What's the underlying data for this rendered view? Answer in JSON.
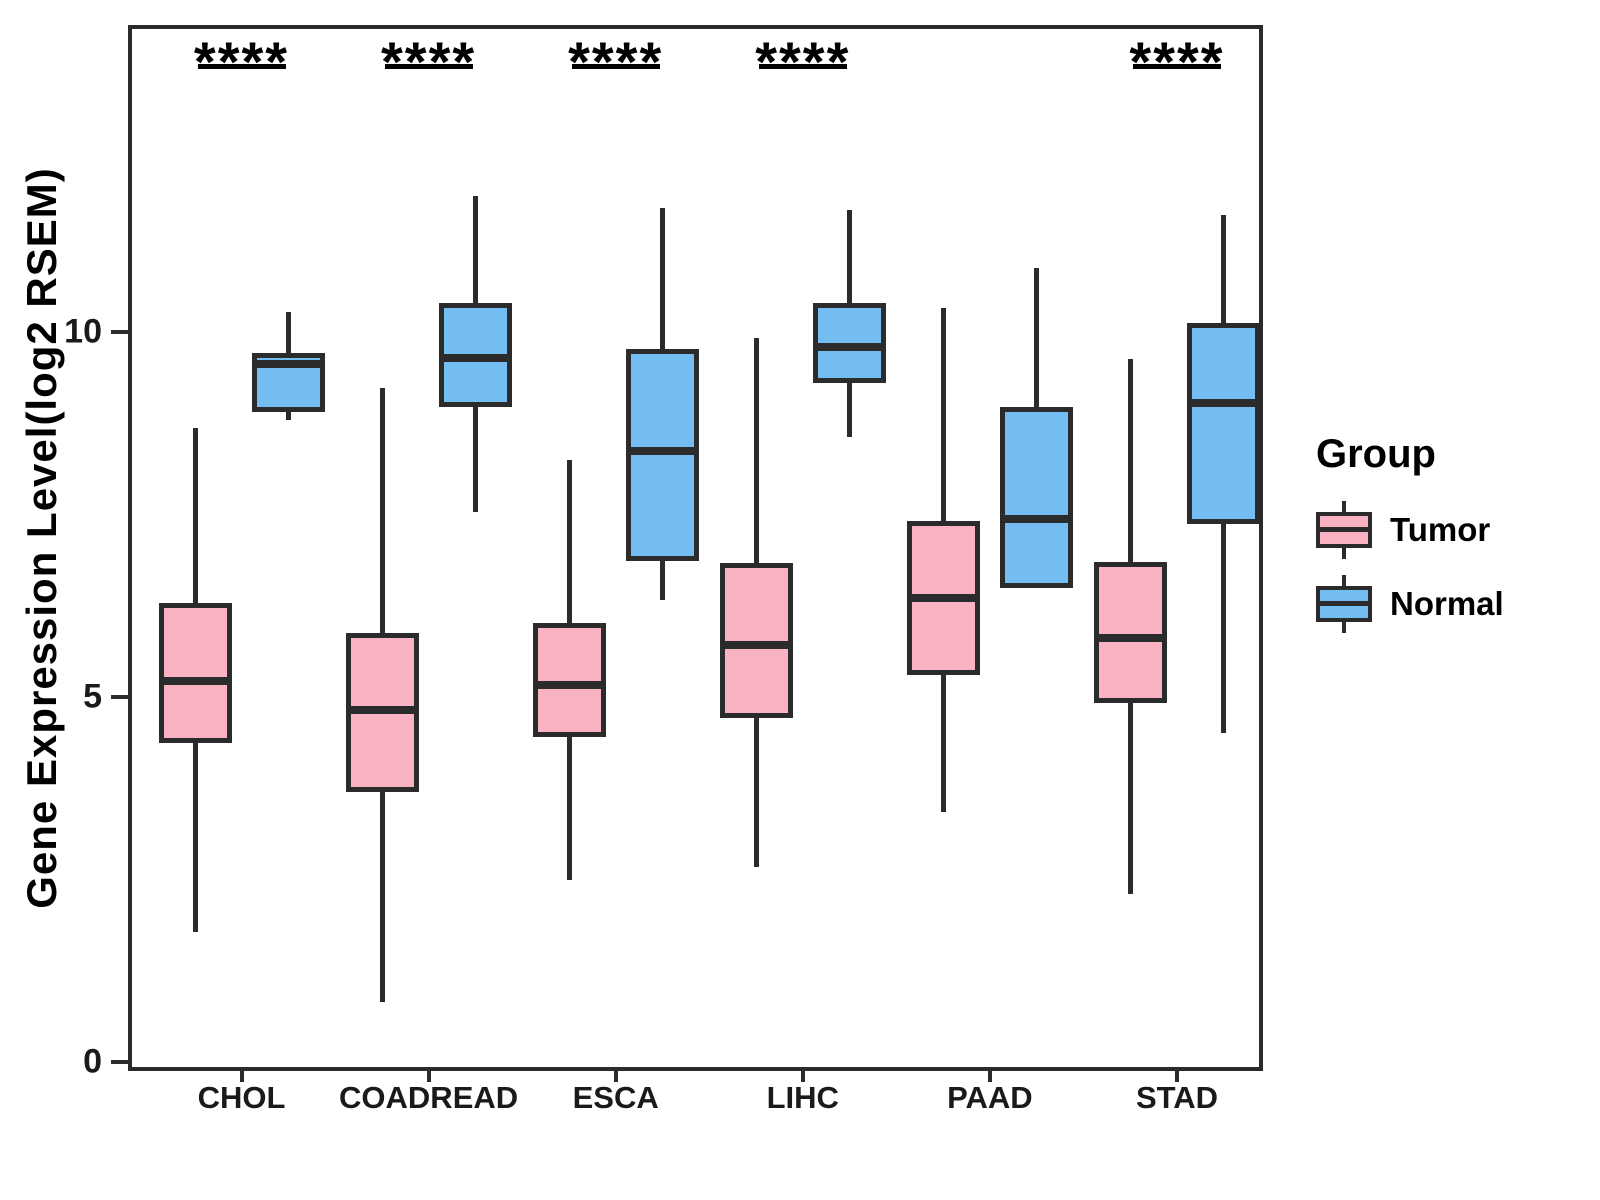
{
  "y_axis": {
    "label": "Gene Expression Level(log2 RSEM)",
    "ticks": [
      "0",
      "5",
      "10"
    ]
  },
  "legend": {
    "title": "Group",
    "items": [
      {
        "label": "Tumor",
        "color": "#FAB3C2"
      },
      {
        "label": "Normal",
        "color": "#74BDF2"
      }
    ]
  },
  "significance": {
    "symbol": "****"
  },
  "chart_data": {
    "type": "boxplot",
    "title": "",
    "ylabel": "Gene Expression Level(log2 RSEM)",
    "xlabel": "",
    "categories": [
      "CHOL",
      "COADREAD",
      "ESCA",
      "LIHC",
      "PAAD",
      "STAD"
    ],
    "ylim": [
      -0.1,
      14.2
    ],
    "y_ticks": [
      0,
      5,
      10
    ],
    "grid": false,
    "legend_position": "right",
    "significance_symbol": "****",
    "significant": [
      true,
      true,
      true,
      true,
      false,
      true
    ],
    "series": [
      {
        "name": "Tumor",
        "color": "#FAB3C2",
        "boxes": [
          {
            "whisker_low": 1.78,
            "q1": 4.37,
            "median": 5.22,
            "q3": 6.29,
            "whisker_high": 8.68
          },
          {
            "whisker_low": 0.82,
            "q1": 3.7,
            "median": 4.82,
            "q3": 5.88,
            "whisker_high": 9.23
          },
          {
            "whisker_low": 2.49,
            "q1": 4.45,
            "median": 5.16,
            "q3": 6.01,
            "whisker_high": 8.25
          },
          {
            "whisker_low": 2.67,
            "q1": 4.71,
            "median": 5.71,
            "q3": 6.84,
            "whisker_high": 9.92
          },
          {
            "whisker_low": 3.42,
            "q1": 5.3,
            "median": 6.36,
            "q3": 7.41,
            "whisker_high": 10.33
          },
          {
            "whisker_low": 2.3,
            "q1": 4.92,
            "median": 5.81,
            "q3": 6.85,
            "whisker_high": 9.63
          }
        ]
      },
      {
        "name": "Normal",
        "color": "#74BDF2",
        "boxes": [
          {
            "whisker_low": 8.8,
            "q1": 8.9,
            "median": 9.56,
            "q3": 9.71,
            "whisker_high": 10.27
          },
          {
            "whisker_low": 7.53,
            "q1": 8.97,
            "median": 9.64,
            "q3": 10.4,
            "whisker_high": 11.86
          },
          {
            "whisker_low": 6.33,
            "q1": 6.86,
            "median": 8.37,
            "q3": 9.77,
            "whisker_high": 11.7
          },
          {
            "whisker_low": 8.56,
            "q1": 9.3,
            "median": 9.79,
            "q3": 10.4,
            "whisker_high": 11.67
          },
          {
            "whisker_low": 6.49,
            "q1": 6.49,
            "median": 7.44,
            "q3": 8.97,
            "whisker_high": 10.88
          },
          {
            "whisker_low": 4.51,
            "q1": 7.37,
            "median": 9.03,
            "q3": 10.12,
            "whisker_high": 11.6
          }
        ]
      }
    ]
  }
}
